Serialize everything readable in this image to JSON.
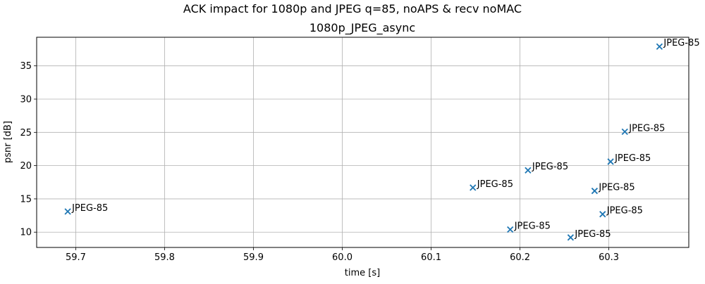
{
  "chart_data": {
    "type": "scatter",
    "suptitle": "ACK impact for 1080p and JPEG q=85, noAPS & recv noMAC",
    "title": "1080p_JPEG_async",
    "xlabel": "time [s]",
    "ylabel": "psnr [dB]",
    "xlim": [
      59.656,
      60.39
    ],
    "ylim": [
      7.7,
      39.3
    ],
    "xticks": [
      59.7,
      59.8,
      59.9,
      60.0,
      60.1,
      60.2,
      60.3
    ],
    "xtick_labels": [
      "59.7",
      "59.8",
      "59.9",
      "60.0",
      "60.1",
      "60.2",
      "60.3"
    ],
    "yticks": [
      10,
      15,
      20,
      25,
      30,
      35
    ],
    "ytick_labels": [
      "10",
      "15",
      "20",
      "25",
      "30",
      "35"
    ],
    "grid": true,
    "marker": "x",
    "color": "#1f77b4",
    "points": [
      {
        "x": 59.691,
        "y": 13.1,
        "label": "JPEG-85"
      },
      {
        "x": 60.147,
        "y": 16.7,
        "label": "JPEG-85"
      },
      {
        "x": 60.189,
        "y": 10.4,
        "label": "JPEG-85"
      },
      {
        "x": 60.209,
        "y": 19.3,
        "label": "JPEG-85"
      },
      {
        "x": 60.257,
        "y": 9.2,
        "label": "JPEG-85"
      },
      {
        "x": 60.284,
        "y": 16.2,
        "label": "JPEG-85"
      },
      {
        "x": 60.293,
        "y": 12.7,
        "label": "JPEG-85"
      },
      {
        "x": 60.302,
        "y": 20.6,
        "label": "JPEG-85"
      },
      {
        "x": 60.318,
        "y": 25.1,
        "label": "JPEG-85"
      },
      {
        "x": 60.357,
        "y": 37.9,
        "label": "JPEG-85"
      }
    ]
  }
}
